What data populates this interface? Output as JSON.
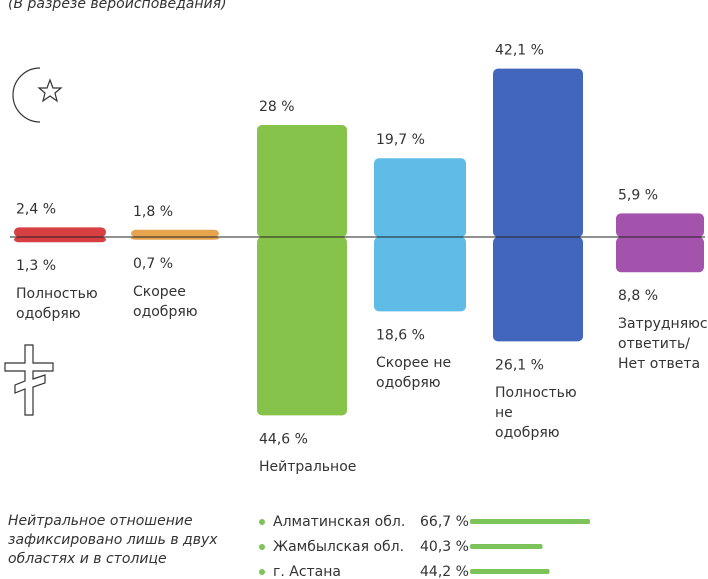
{
  "chart_data": {
    "type": "diverging-bar",
    "subtitle": "(В разрезе вероисповедания)",
    "categories": [
      "Полностью одобряю",
      "Скорее одобряю",
      "Нейтральное",
      "Скорее не одобряю",
      "Полностью не одобряю",
      "Затрудняюсь ответить/ Нет ответа"
    ],
    "colors": [
      "#d42a2e",
      "#e39a3c",
      "#79bd36",
      "#4db5e3",
      "#2c55b5",
      "#9a40a3"
    ],
    "series": [
      {
        "values": [
          2.4,
          1.8,
          28,
          19.7,
          42.1,
          5.9
        ],
        "value_labels": [
          "2,4 %",
          "1,8 %",
          "28 %",
          "19,7 %",
          "42,1 %",
          "5,9 %"
        ]
      },
      {
        "values": [
          1.3,
          0.7,
          44.6,
          18.6,
          26.1,
          8.8
        ],
        "value_labels": [
          "1,3 %",
          "0,7 %",
          "44,6 %",
          "18,6 %",
          "26,1 %",
          "8,8 %"
        ]
      }
    ],
    "note": "Нейтральное отношение зафиксировано лишь в двух областях и в столице",
    "regions": {
      "color": "#7cc35a",
      "names": [
        "Алматинская обл.",
        "Жамбылская обл.",
        "г. Астана"
      ],
      "values": [
        66.7,
        40.3,
        44.2
      ],
      "value_labels": [
        "66,7 %",
        "40,3 %",
        "44,2 %"
      ]
    }
  }
}
